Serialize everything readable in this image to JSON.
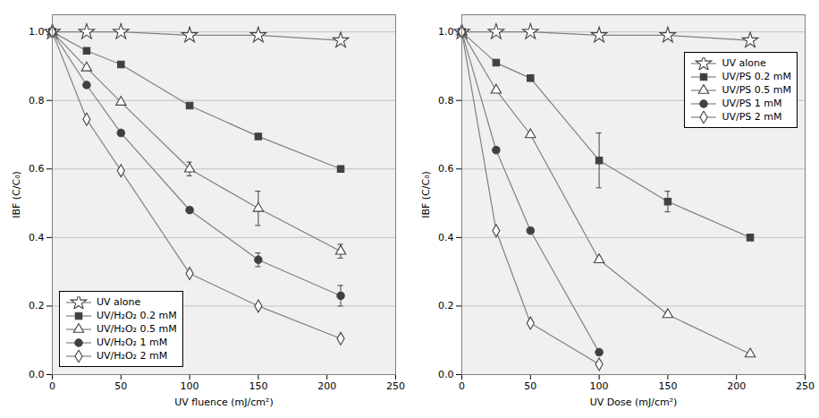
{
  "chart_data": [
    {
      "type": "line",
      "xlabel": "UV fluence (mJ/cm²)",
      "ylabel": "IBF (C/C₀)",
      "xlim": [
        0,
        250
      ],
      "ylim": [
        0.0,
        1.05
      ],
      "xticks": [
        0,
        50,
        100,
        150,
        200,
        250
      ],
      "yticks": [
        {
          "value": 0.0,
          "label": "0.0"
        },
        0.2,
        0.4,
        0.6,
        0.8,
        {
          "value": 1.0,
          "label": "1.0"
        }
      ],
      "grid": "y",
      "legend": "lower left",
      "series": [
        {
          "name": "UV alone",
          "color": "#808080",
          "marker": "open star",
          "line_style": "solid",
          "x": [
            0,
            25,
            50,
            100,
            150,
            210
          ],
          "values": [
            1.0,
            1.0,
            1.0,
            0.99,
            0.99,
            0.975
          ],
          "errors": [
            0,
            0,
            0,
            0,
            0,
            0
          ]
        },
        {
          "name": "UV/H₂O₂ 0.2 mM",
          "color": "#808080",
          "marker": "filled square",
          "line_style": "solid",
          "x": [
            0,
            25,
            50,
            100,
            150,
            210
          ],
          "values": [
            1.0,
            0.945,
            0.905,
            0.785,
            0.695,
            0.6
          ],
          "errors": [
            0,
            0,
            0,
            0,
            0,
            0
          ]
        },
        {
          "name": "UV/H₂O₂ 0.5 mM",
          "color": "#808080",
          "marker": "open triangle",
          "line_style": "solid",
          "x": [
            0,
            25,
            50,
            100,
            150,
            210
          ],
          "values": [
            1.0,
            0.895,
            0.795,
            0.6,
            0.485,
            0.36
          ],
          "errors": [
            0,
            0,
            0,
            0.02,
            0.05,
            0.02
          ]
        },
        {
          "name": "UV/H₂O₂ 1 mM",
          "color": "#808080",
          "marker": "filled circle",
          "line_style": "solid",
          "x": [
            0,
            25,
            50,
            100,
            150,
            210
          ],
          "values": [
            1.0,
            0.845,
            0.705,
            0.48,
            0.335,
            0.23
          ],
          "errors": [
            0,
            0,
            0,
            0,
            0.02,
            0.03
          ]
        },
        {
          "name": "UV/H₂O₂ 2 mM",
          "color": "#808080",
          "marker": "open diamond",
          "line_style": "solid",
          "x": [
            0,
            25,
            50,
            100,
            150,
            210
          ],
          "values": [
            1.0,
            0.745,
            0.595,
            0.295,
            0.2,
            0.105
          ],
          "errors": [
            0,
            0,
            0,
            0,
            0,
            0
          ]
        }
      ]
    },
    {
      "type": "line",
      "xlabel": "UV Dose (mJ/cm²)",
      "ylabel": "IBF (C/C₀)",
      "xlim": [
        0,
        250
      ],
      "ylim": [
        0.0,
        1.05
      ],
      "xticks": [
        0,
        50,
        100,
        150,
        200,
        250
      ],
      "yticks": [
        {
          "value": 0.0,
          "label": "0.0"
        },
        0.2,
        0.4,
        0.6,
        0.8,
        {
          "value": 1.0,
          "label": "1.0"
        }
      ],
      "grid": "y",
      "legend": "upper right",
      "series": [
        {
          "name": "UV alone",
          "color": "#808080",
          "marker": "open star",
          "line_style": "solid",
          "x": [
            0,
            25,
            50,
            100,
            150,
            210
          ],
          "values": [
            1.0,
            1.0,
            1.0,
            0.99,
            0.99,
            0.975
          ],
          "errors": [
            0,
            0,
            0,
            0,
            0,
            0
          ]
        },
        {
          "name": "UV/PS 0.2 mM",
          "color": "#808080",
          "marker": "filled square",
          "line_style": "solid",
          "x": [
            0,
            25,
            50,
            100,
            150,
            210
          ],
          "values": [
            1.0,
            0.91,
            0.865,
            0.625,
            0.505,
            0.4
          ],
          "errors": [
            0,
            0,
            0,
            0.08,
            0.03,
            0
          ]
        },
        {
          "name": "UV/PS 0.5 mM",
          "color": "#808080",
          "marker": "open triangle",
          "line_style": "solid",
          "x": [
            0,
            25,
            50,
            100,
            150,
            210
          ],
          "values": [
            1.0,
            0.83,
            0.7,
            0.335,
            0.175,
            0.06
          ],
          "errors": [
            0,
            0,
            0,
            0,
            0,
            0
          ]
        },
        {
          "name": "UV/PS 1 mM",
          "color": "#808080",
          "marker": "filled circle",
          "line_style": "solid",
          "x": [
            0,
            25,
            50,
            100
          ],
          "values": [
            1.0,
            0.655,
            0.42,
            0.065
          ],
          "errors": [
            0,
            0,
            0,
            0
          ]
        },
        {
          "name": "UV/PS 2 mM",
          "color": "#808080",
          "marker": "open diamond",
          "line_style": "solid",
          "x": [
            0,
            25,
            50,
            100
          ],
          "values": [
            1.0,
            0.42,
            0.15,
            0.03
          ],
          "errors": [
            0,
            0,
            0,
            0
          ]
        }
      ]
    }
  ]
}
